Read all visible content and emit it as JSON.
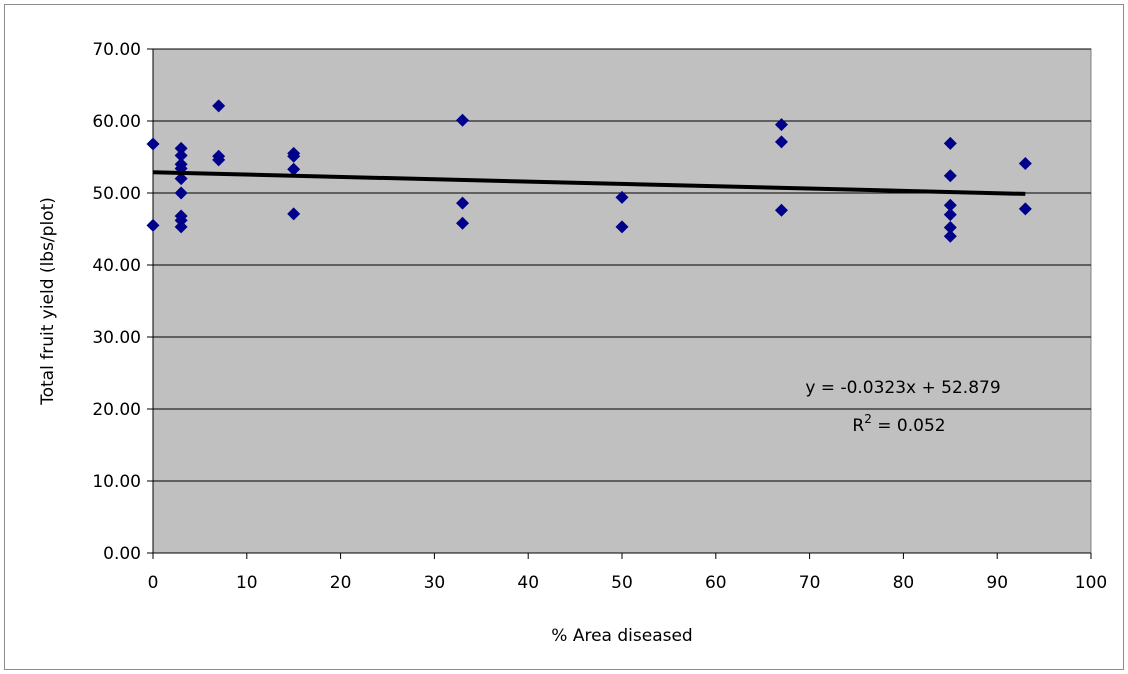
{
  "chart_data": {
    "type": "scatter",
    "title": "",
    "xlabel": "% Area diseased",
    "ylabel": "Total fruit yield (lbs/plot)",
    "xlim": [
      0,
      100
    ],
    "ylim": [
      0,
      70
    ],
    "x_ticks": [
      0,
      10,
      20,
      30,
      40,
      50,
      60,
      70,
      80,
      90,
      100
    ],
    "y_ticks": [
      0,
      10,
      20,
      30,
      40,
      50,
      60,
      70
    ],
    "x_tick_labels": [
      "0",
      "10",
      "20",
      "30",
      "40",
      "50",
      "60",
      "70",
      "80",
      "90",
      "100"
    ],
    "y_tick_labels": [
      "0.00",
      "10.00",
      "20.00",
      "30.00",
      "40.00",
      "50.00",
      "60.00",
      "70.00"
    ],
    "grid": "horizontal",
    "legend": "none",
    "marker": "diamond",
    "colors": {
      "marker": "#00008b",
      "plot_background": "#c0c0c0",
      "gridline": "#000000",
      "trendline": "#000000"
    },
    "points": [
      {
        "x": 0,
        "y": 56.8
      },
      {
        "x": 0,
        "y": 45.5
      },
      {
        "x": 3,
        "y": 56.2
      },
      {
        "x": 3,
        "y": 55.2
      },
      {
        "x": 3,
        "y": 54.0
      },
      {
        "x": 3,
        "y": 53.4
      },
      {
        "x": 3,
        "y": 52.0
      },
      {
        "x": 3,
        "y": 50.0
      },
      {
        "x": 3,
        "y": 46.8
      },
      {
        "x": 3,
        "y": 46.2
      },
      {
        "x": 3,
        "y": 45.3
      },
      {
        "x": 7,
        "y": 62.1
      },
      {
        "x": 7,
        "y": 55.1
      },
      {
        "x": 7,
        "y": 54.6
      },
      {
        "x": 15,
        "y": 55.5
      },
      {
        "x": 15,
        "y": 55.1
      },
      {
        "x": 15,
        "y": 53.3
      },
      {
        "x": 15,
        "y": 47.1
      },
      {
        "x": 33,
        "y": 60.1
      },
      {
        "x": 33,
        "y": 48.6
      },
      {
        "x": 33,
        "y": 45.8
      },
      {
        "x": 50,
        "y": 49.4
      },
      {
        "x": 50,
        "y": 45.3
      },
      {
        "x": 67,
        "y": 59.5
      },
      {
        "x": 67,
        "y": 57.1
      },
      {
        "x": 67,
        "y": 47.6
      },
      {
        "x": 85,
        "y": 56.9
      },
      {
        "x": 85,
        "y": 52.4
      },
      {
        "x": 85,
        "y": 48.3
      },
      {
        "x": 85,
        "y": 47.0
      },
      {
        "x": 85,
        "y": 45.2
      },
      {
        "x": 85,
        "y": 44.0
      },
      {
        "x": 93,
        "y": 54.1
      },
      {
        "x": 93,
        "y": 47.8
      }
    ],
    "trendline": {
      "type": "linear",
      "slope": -0.0323,
      "intercept": 52.879,
      "x_range": [
        0,
        93
      ],
      "equation_text": "y = -0.0323x + 52.879",
      "r2_prefix": "R",
      "r2_superscript": "2",
      "r2_suffix": " = 0.052"
    }
  }
}
